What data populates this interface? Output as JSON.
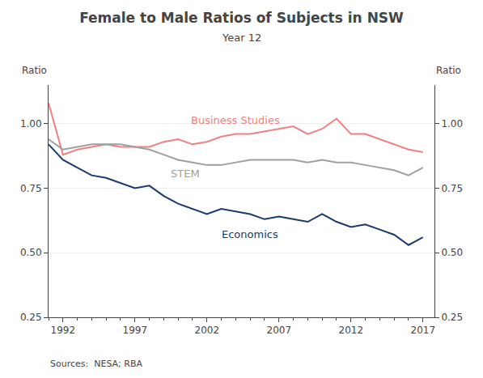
{
  "chart_data": {
    "type": "line",
    "title": "Female to Male Ratios of Subjects in NSW",
    "subtitle": "Year 12",
    "ylabel": "Ratio",
    "y2label": "Ratio",
    "source": "Sources:  NESA; RBA",
    "x": [
      1991,
      1992,
      1993,
      1994,
      1995,
      1996,
      1997,
      1998,
      1999,
      2000,
      2001,
      2002,
      2003,
      2004,
      2005,
      2006,
      2007,
      2008,
      2009,
      2010,
      2011,
      2012,
      2013,
      2014,
      2015,
      2016,
      2017
    ],
    "series": [
      {
        "name": "Business Studies",
        "color": "#f08080",
        "values": [
          1.08,
          0.88,
          0.9,
          0.91,
          0.92,
          0.91,
          0.91,
          0.91,
          0.93,
          0.94,
          0.92,
          0.93,
          0.95,
          0.96,
          0.96,
          0.97,
          0.98,
          0.99,
          0.96,
          0.98,
          1.02,
          0.96,
          0.96,
          0.94,
          0.92,
          0.9,
          0.89
        ]
      },
      {
        "name": "STEM",
        "color": "#a0a0a0",
        "values": [
          0.94,
          0.9,
          0.91,
          0.92,
          0.92,
          0.92,
          0.91,
          0.9,
          0.88,
          0.86,
          0.85,
          0.84,
          0.84,
          0.85,
          0.86,
          0.86,
          0.86,
          0.86,
          0.85,
          0.86,
          0.85,
          0.85,
          0.84,
          0.83,
          0.82,
          0.8,
          0.83
        ]
      },
      {
        "name": "Economics",
        "color": "#1a3a6b",
        "values": [
          0.92,
          0.86,
          0.83,
          0.8,
          0.79,
          0.77,
          0.75,
          0.76,
          0.72,
          0.69,
          0.67,
          0.65,
          0.67,
          0.66,
          0.65,
          0.63,
          0.64,
          0.63,
          0.62,
          0.65,
          0.62,
          0.6,
          0.61,
          0.59,
          0.57,
          0.53,
          0.56
        ]
      }
    ],
    "annotations": [
      {
        "text": "Business Studies",
        "x": 2004,
        "y": 1.015,
        "color": "#f08080"
      },
      {
        "text": "STEM",
        "x": 2000.5,
        "y": 0.808,
        "color": "#a0a0a0"
      },
      {
        "text": "Economics",
        "x": 2005,
        "y": 0.572,
        "color": "#1a3a6b"
      }
    ],
    "xlim": [
      1991.0,
      2017.8
    ],
    "xticks": [
      1992,
      1997,
      2002,
      2007,
      2012,
      2017
    ],
    "ylim": [
      0.25,
      1.15
    ],
    "yticks": [
      0.25,
      {
        "value": 0.5,
        "label": "0.50"
      },
      0.75,
      {
        "value": 1.0,
        "label": "1.00"
      }
    ],
    "y2lim": [
      0.25,
      1.15
    ],
    "y2ticks": [
      0.25,
      {
        "value": 0.5,
        "label": "0.50"
      },
      0.75,
      {
        "value": 1.0,
        "label": "1.00"
      }
    ],
    "grid": true
  }
}
